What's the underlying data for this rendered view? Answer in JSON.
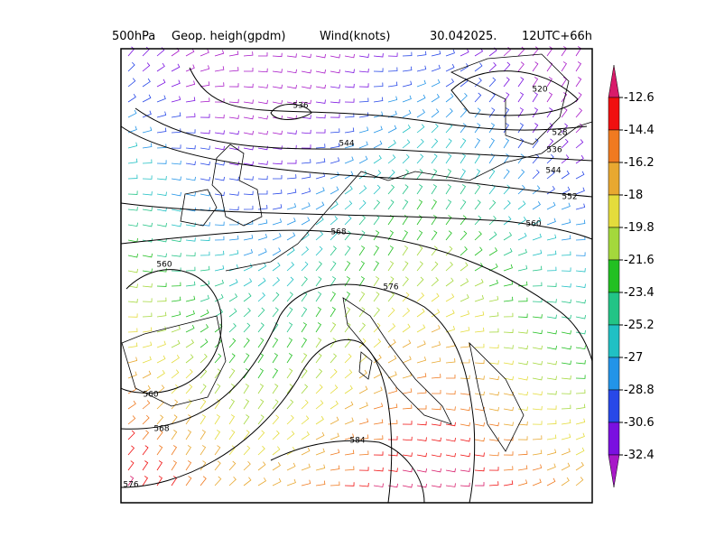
{
  "header": {
    "level": "500hPa",
    "field": "Geop. heigh(gpdm)",
    "wind": "Wind(knots)",
    "date": "30.042025.",
    "run": "12UTC+66h"
  },
  "contours": {
    "labels": [
      536,
      544,
      520,
      528,
      536,
      544,
      552,
      560,
      568,
      560,
      576,
      560,
      568,
      584,
      576
    ]
  },
  "colorbar": {
    "levels": [
      -12.6,
      -14.4,
      -16.2,
      -18,
      -19.8,
      -21.6,
      -23.4,
      -25.2,
      -27,
      -28.8,
      -30.6,
      -32.4
    ],
    "colors": [
      "#d81b6a",
      "#f01010",
      "#f07a20",
      "#e8a830",
      "#e4dc3c",
      "#a4d83c",
      "#22c022",
      "#22c486",
      "#20c0c4",
      "#2294e8",
      "#2848e8",
      "#7a10e0",
      "#a818c8"
    ]
  }
}
